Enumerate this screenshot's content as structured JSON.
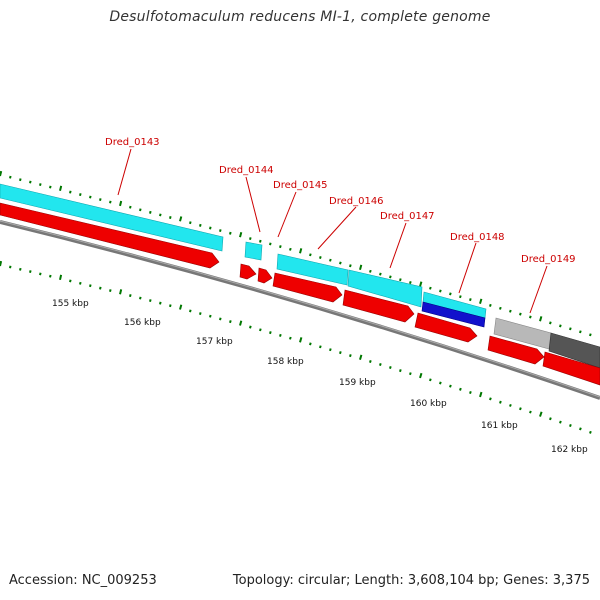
{
  "title": "Desulfotomaculum reducens MI-1, complete genome",
  "accession_text": "Accession: NC_009253",
  "summary_text": "Topology: circular; Length: 3,608,104 bp; Genes: 3,375",
  "colors": {
    "cyan_feature": "#22e6ee",
    "red_feature": "#ee0000",
    "blue_feature": "#1111cc",
    "light_gray_feature": "#b8b8b8",
    "dark_gray_feature": "#555555",
    "backbone": "#777777",
    "tick_green": "#007700",
    "label_red": "#cc0000"
  },
  "gene_labels": [
    {
      "id": "g143",
      "text": "Dred_0143"
    },
    {
      "id": "g144",
      "text": "Dred_0144"
    },
    {
      "id": "g145",
      "text": "Dred_0145"
    },
    {
      "id": "g146",
      "text": "Dred_0146"
    },
    {
      "id": "g147",
      "text": "Dred_0147"
    },
    {
      "id": "g148",
      "text": "Dred_0148"
    },
    {
      "id": "g149",
      "text": "Dred_0149"
    }
  ],
  "scale_labels": [
    "155 kbp",
    "156 kbp",
    "157 kbp",
    "158 kbp",
    "159 kbp",
    "160 kbp",
    "161 kbp",
    "162 kbp"
  ]
}
